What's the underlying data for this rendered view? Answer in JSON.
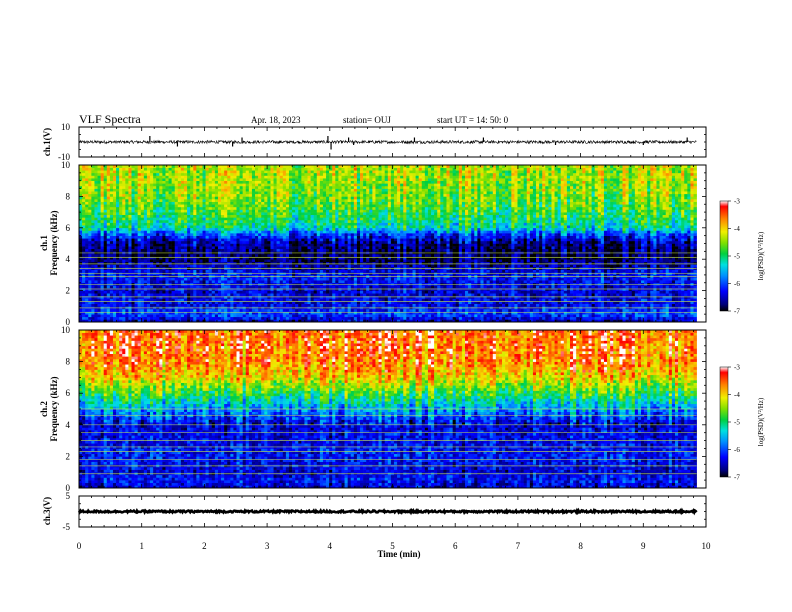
{
  "header": {
    "title": "VLF Spectra",
    "date": "Apr. 18, 2023",
    "station": "station= OUJ",
    "start": "start  UT =   14: 50: 0"
  },
  "chart_data": [
    {
      "type": "line",
      "panel": "ch1-waveform",
      "ylabel": "ch.1(V)",
      "ylim": [
        -10,
        10
      ],
      "yticks": [
        "10",
        "-10"
      ],
      "xlim": [
        0,
        10
      ],
      "baseline": 0,
      "noise_amplitude": 1,
      "spikes": [
        {
          "x": 1.13,
          "y": 4
        },
        {
          "x": 1.57,
          "y": -3
        },
        {
          "x": 2.45,
          "y": -3
        },
        {
          "x": 2.6,
          "y": 3
        },
        {
          "x": 3.97,
          "y": 4
        },
        {
          "x": 4.02,
          "y": -5
        },
        {
          "x": 4.3,
          "y": 3
        },
        {
          "x": 4.38,
          "y": -2
        },
        {
          "x": 5.35,
          "y": 3
        },
        {
          "x": 6.45,
          "y": 3
        },
        {
          "x": 7.6,
          "y": -2
        },
        {
          "x": 9.0,
          "y": -2
        },
        {
          "x": 9.7,
          "y": 3
        }
      ]
    },
    {
      "type": "heatmap",
      "panel": "ch1-spectrogram",
      "ylabel_top": "ch.1",
      "ylabel": "Frequency (kHz)",
      "ylim": [
        0,
        10
      ],
      "yticks": [
        "0",
        "2",
        "4",
        "6",
        "8",
        "10"
      ],
      "xlim": [
        0,
        10
      ],
      "data_end_min": 9.85,
      "colorbar": {
        "label": "log(PSD)(V²/Hz)",
        "range": [
          -7,
          -3
        ],
        "ticks": [
          "-3",
          "-4",
          "-5",
          "-6",
          "-7"
        ]
      },
      "profile": [
        {
          "f": 0,
          "v": -6.6
        },
        {
          "f": 0.5,
          "v": -6.0
        },
        {
          "f": 1.0,
          "v": -6.3
        },
        {
          "f": 2.0,
          "v": -6.4
        },
        {
          "f": 3.0,
          "v": -6.2
        },
        {
          "f": 4.0,
          "v": -6.8
        },
        {
          "f": 5.0,
          "v": -6.7
        },
        {
          "f": 5.6,
          "v": -6.0
        },
        {
          "f": 6.0,
          "v": -5.2
        },
        {
          "f": 7.0,
          "v": -4.8
        },
        {
          "f": 8.0,
          "v": -4.5
        },
        {
          "f": 9.0,
          "v": -4.4
        },
        {
          "f": 10.0,
          "v": -4.3
        }
      ],
      "lines_khz": [
        0.6,
        0.9,
        1.3,
        1.6,
        2.1,
        2.4,
        2.9,
        3.1,
        3.4,
        3.7,
        4.1,
        4.4
      ]
    },
    {
      "type": "heatmap",
      "panel": "ch2-spectrogram",
      "ylabel_top": "ch.2",
      "ylabel": "Frequency (kHz)",
      "ylim": [
        0,
        10
      ],
      "yticks": [
        "0",
        "2",
        "4",
        "6",
        "8",
        "10"
      ],
      "xlim": [
        0,
        10
      ],
      "data_end_min": 9.85,
      "colorbar": {
        "label": "log(PSD)(V²/Hz)",
        "range": [
          -7,
          -3
        ],
        "ticks": [
          "-3",
          "-4",
          "-5",
          "-6",
          "-7"
        ]
      },
      "profile": [
        {
          "f": 0,
          "v": -6.5
        },
        {
          "f": 0.5,
          "v": -6.2
        },
        {
          "f": 1.0,
          "v": -6.4
        },
        {
          "f": 2.0,
          "v": -6.2
        },
        {
          "f": 3.0,
          "v": -6.3
        },
        {
          "f": 4.0,
          "v": -6.4
        },
        {
          "f": 5.0,
          "v": -5.6
        },
        {
          "f": 6.0,
          "v": -4.8
        },
        {
          "f": 7.0,
          "v": -4.0
        },
        {
          "f": 8.0,
          "v": -3.6
        },
        {
          "f": 9.0,
          "v": -3.5
        },
        {
          "f": 10.0,
          "v": -3.5
        }
      ],
      "lines_khz": [
        0.9,
        1.4,
        1.8,
        2.3,
        2.6,
        3.0,
        3.5,
        4.0,
        4.6,
        5.0
      ]
    },
    {
      "type": "line",
      "panel": "ch3-waveform",
      "ylabel": "ch.3(V)",
      "ylim": [
        -5,
        5
      ],
      "yticks": [
        "5",
        "-5"
      ],
      "xlim": [
        0,
        10
      ],
      "baseline": 0,
      "noise_amplitude": 0.3,
      "spikes": []
    }
  ],
  "xaxis": {
    "label": "Time (min)",
    "ticks": [
      "0",
      "1",
      "2",
      "3",
      "4",
      "5",
      "6",
      "7",
      "8",
      "9",
      "10"
    ]
  }
}
